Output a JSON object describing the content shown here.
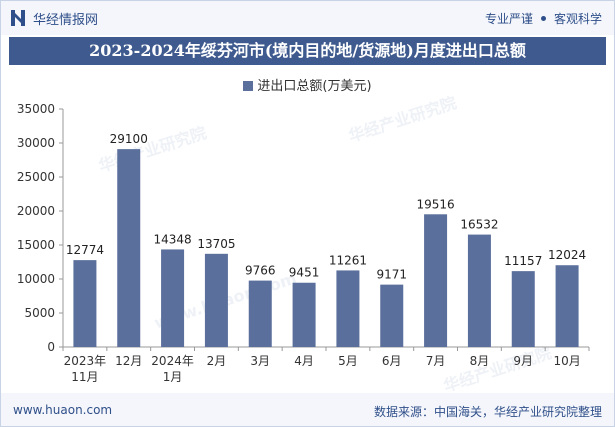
{
  "header": {
    "brand_name": "华经情报网",
    "tagline_left": "专业严谨",
    "tagline_right": "客观科学"
  },
  "title": "2023-2024年绥芬河市(境内目的地/货源地)月度进出口总额",
  "footer": {
    "url": "www.huaon.com",
    "source": "数据来源：中国海关，华经产业研究院整理"
  },
  "watermark": {
    "text": "华经产业研究院",
    "url": "www.huaon.com"
  },
  "colors": {
    "bar": "#5a6f9b",
    "title_bg": "#3e5a8e",
    "brand": "#2f4f8a"
  },
  "chart_data": {
    "type": "bar",
    "categories": [
      "2023年\n11月",
      "12月",
      "2024年\n1月",
      "2月",
      "3月",
      "4月",
      "5月",
      "6月",
      "7月",
      "8月",
      "9月",
      "10月"
    ],
    "series": [
      {
        "name": "进出口总额(万美元)",
        "values": [
          12774,
          29100,
          14348,
          13705,
          9766,
          9451,
          11261,
          9171,
          19516,
          16532,
          11157,
          12024
        ]
      }
    ],
    "ylim": [
      0,
      35000
    ],
    "yticks": [
      0,
      5000,
      10000,
      15000,
      20000,
      25000,
      30000,
      35000
    ],
    "grid": false,
    "legend": "top-center",
    "data_labels": true
  }
}
